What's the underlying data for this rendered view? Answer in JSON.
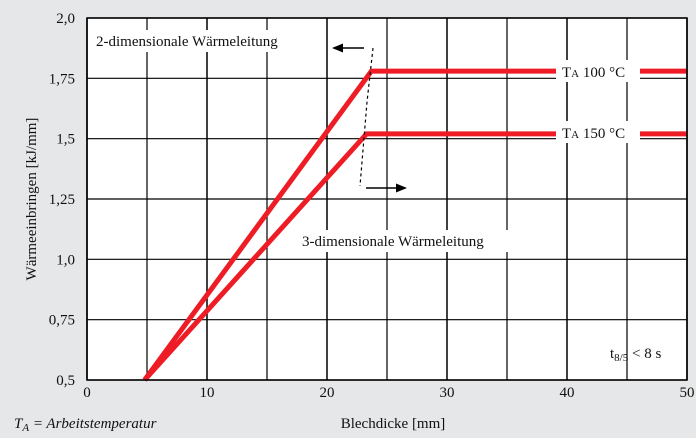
{
  "chart_data": {
    "type": "line",
    "xlabel": "Blechdicke [mm]",
    "ylabel": "Wärmeeinbringen [kJ/mm]",
    "xlim": [
      0,
      50
    ],
    "ylim": [
      0.5,
      2.0
    ],
    "x_ticks": [
      "0",
      "10",
      "20",
      "30",
      "40",
      "50"
    ],
    "y_ticks": [
      "0,5",
      "0,75",
      "1,0",
      "1,25",
      "1,5",
      "1,75",
      "2,0"
    ],
    "grid": true,
    "series": [
      {
        "name": "TA 100 °C",
        "color": "#ee1c25",
        "x": [
          4.8,
          23.7,
          50
        ],
        "y": [
          0.5,
          1.78,
          1.78
        ]
      },
      {
        "name": "TA 150 °C",
        "color": "#ee1c25",
        "x": [
          4.8,
          23.3,
          50
        ],
        "y": [
          0.5,
          1.52,
          1.52
        ]
      }
    ],
    "series_labels": [
      {
        "t_sym": "T",
        "t_sub": "A",
        "text": " 100 °C"
      },
      {
        "t_sym": "T",
        "t_sub": "A",
        "text": " 150 °C"
      }
    ],
    "annotations": {
      "two_dim": "2-dimensionale Wärmeleitung",
      "three_dim": "3-dimensionale Wärmeleitung",
      "t_sym": "t",
      "t_sub": "8/5",
      "t_cond": " < 8 s"
    },
    "footnote": {
      "sym": "T",
      "sub": "A",
      "text": " = Arbeitstemperatur"
    }
  }
}
